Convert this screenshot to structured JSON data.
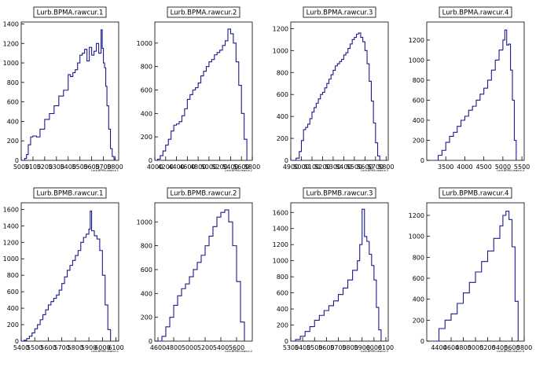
{
  "chart_data": [
    {
      "type": "histogram",
      "title": "Lurb.BPMA.rawcur.1",
      "xlabel": "Lurb.BPMA.rawcur.1",
      "x_ticks": [
        "5000",
        "5100",
        "5200",
        "5300",
        "5400",
        "5500",
        "5600",
        "5700",
        "5800"
      ],
      "y_ticks": [
        "0",
        "200",
        "400",
        "600",
        "800",
        "1000",
        "1200",
        "1400"
      ],
      "xlim": [
        5000,
        5830
      ],
      "ylim": [
        0,
        1420
      ],
      "x": [
        5010,
        5030,
        5045,
        5060,
        5080,
        5100,
        5130,
        5160,
        5200,
        5240,
        5280,
        5320,
        5360,
        5400,
        5420,
        5440,
        5460,
        5480,
        5500,
        5520,
        5540,
        5560,
        5580,
        5600,
        5620,
        5640,
        5660,
        5680,
        5690,
        5700,
        5710,
        5720,
        5730,
        5745,
        5760,
        5775,
        5790,
        5800
      ],
      "values": [
        0,
        20,
        60,
        160,
        240,
        250,
        240,
        320,
        420,
        480,
        560,
        660,
        720,
        880,
        860,
        900,
        930,
        1000,
        1080,
        1100,
        1140,
        1020,
        1160,
        1080,
        1120,
        1200,
        1100,
        1340,
        1150,
        1000,
        950,
        760,
        560,
        320,
        120,
        40,
        10,
        0
      ]
    },
    {
      "type": "histogram",
      "title": "Lurb.BPMA.rawcur.2",
      "xlabel": "Lurb.BPMA.rawcur.2",
      "x_ticks": [
        "4000",
        "4200",
        "4400",
        "4600",
        "4800",
        "5000",
        "5200",
        "5400",
        "5600",
        "5800"
      ],
      "y_ticks": [
        "0",
        "200",
        "400",
        "600",
        "800",
        "1000"
      ],
      "xlim": [
        4000,
        5800
      ],
      "ylim": [
        0,
        1180
      ],
      "x": [
        4000,
        4050,
        4100,
        4150,
        4200,
        4250,
        4300,
        4350,
        4400,
        4450,
        4500,
        4550,
        4600,
        4650,
        4700,
        4750,
        4800,
        4850,
        4900,
        4950,
        5000,
        5050,
        5100,
        5150,
        5200,
        5250,
        5300,
        5350,
        5400,
        5450,
        5500,
        5550,
        5600,
        5650,
        5700
      ],
      "values": [
        0,
        10,
        40,
        80,
        130,
        180,
        250,
        300,
        310,
        330,
        380,
        440,
        520,
        560,
        600,
        620,
        660,
        720,
        760,
        800,
        840,
        860,
        900,
        920,
        940,
        980,
        1020,
        1120,
        1080,
        1000,
        840,
        640,
        400,
        180,
        0
      ]
    },
    {
      "type": "histogram",
      "title": "Lurb.BPMA.rawcur.3",
      "xlabel": "Lurb.BPMA.rawcur.3",
      "x_ticks": [
        "4900",
        "5000",
        "5100",
        "5200",
        "5300",
        "5400",
        "5500",
        "5600",
        "5700",
        "5800"
      ],
      "y_ticks": [
        "0",
        "200",
        "400",
        "600",
        "800",
        "1000",
        "1200"
      ],
      "xlim": [
        4900,
        5820
      ],
      "ylim": [
        0,
        1260
      ],
      "x": [
        4900,
        4950,
        4980,
        5000,
        5020,
        5040,
        5060,
        5080,
        5100,
        5120,
        5140,
        5160,
        5180,
        5200,
        5220,
        5240,
        5260,
        5280,
        5300,
        5320,
        5340,
        5360,
        5380,
        5400,
        5420,
        5440,
        5460,
        5480,
        5500,
        5520,
        5540,
        5560,
        5580,
        5600,
        5620,
        5640,
        5660,
        5680,
        5700,
        5720,
        5740
      ],
      "values": [
        0,
        20,
        80,
        180,
        280,
        300,
        330,
        380,
        440,
        480,
        520,
        560,
        600,
        620,
        660,
        700,
        740,
        780,
        820,
        860,
        880,
        900,
        920,
        960,
        980,
        1020,
        1060,
        1100,
        1120,
        1150,
        1160,
        1120,
        1080,
        1000,
        880,
        720,
        540,
        340,
        160,
        40,
        0
      ]
    },
    {
      "type": "histogram",
      "title": "Lurb.BPMA.rawcur.4",
      "xlabel": "Lurb.BPMA.rawcur.4",
      "x_ticks": [
        "3500",
        "4000",
        "4500",
        "5000",
        "5500"
      ],
      "y_ticks": [
        "0",
        "200",
        "400",
        "600",
        "800",
        "1000",
        "1200"
      ],
      "xlim": [
        3000,
        5560
      ],
      "ylim": [
        0,
        1380
      ],
      "x": [
        3200,
        3300,
        3400,
        3500,
        3600,
        3700,
        3800,
        3900,
        4000,
        4100,
        4200,
        4300,
        4400,
        4500,
        4600,
        4700,
        4800,
        4900,
        5000,
        5050,
        5100,
        5150,
        5200,
        5250,
        5300,
        5350
      ],
      "values": [
        0,
        50,
        100,
        180,
        240,
        280,
        340,
        400,
        440,
        500,
        540,
        600,
        660,
        720,
        800,
        900,
        1000,
        1100,
        1200,
        1300,
        1150,
        1160,
        900,
        600,
        200,
        0
      ]
    },
    {
      "type": "histogram",
      "title": "Lurb.BPMB.rawcur.1",
      "xlabel": "Lurb.BPMB.rawcur.1",
      "x_ticks": [
        "5400",
        "5500",
        "5600",
        "5700",
        "5800",
        "5900",
        "6000",
        "6100"
      ],
      "y_ticks": [
        "0",
        "200",
        "400",
        "600",
        "800",
        "1000",
        "1200",
        "1400",
        "1600"
      ],
      "xlim": [
        5400,
        6120
      ],
      "ylim": [
        0,
        1680
      ],
      "x": [
        5400,
        5420,
        5440,
        5460,
        5480,
        5500,
        5520,
        5540,
        5560,
        5580,
        5600,
        5620,
        5640,
        5660,
        5680,
        5700,
        5720,
        5740,
        5760,
        5780,
        5800,
        5820,
        5840,
        5860,
        5880,
        5900,
        5910,
        5920,
        5940,
        5960,
        5980,
        6000,
        6020,
        6040,
        6060
      ],
      "values": [
        0,
        10,
        30,
        60,
        100,
        150,
        200,
        260,
        320,
        380,
        440,
        480,
        520,
        560,
        620,
        700,
        780,
        860,
        920,
        980,
        1040,
        1100,
        1200,
        1260,
        1300,
        1360,
        1580,
        1340,
        1280,
        1240,
        1100,
        800,
        440,
        140,
        0
      ]
    },
    {
      "type": "histogram",
      "title": "Lurb.BPMB.rawcur.2",
      "xlabel": "Lurb.BPMB.rawcur.2",
      "x_ticks": [
        "4600",
        "4800",
        "5000",
        "5200",
        "5400",
        "5600"
      ],
      "y_ticks": [
        "0",
        "200",
        "400",
        "600",
        "800",
        "1000"
      ],
      "xlim": [
        4560,
        5800
      ],
      "ylim": [
        0,
        1160
      ],
      "x": [
        4600,
        4650,
        4700,
        4750,
        4800,
        4850,
        4900,
        4950,
        5000,
        5050,
        5100,
        5150,
        5200,
        5250,
        5300,
        5350,
        5400,
        5450,
        5500,
        5550,
        5600,
        5650,
        5700
      ],
      "values": [
        0,
        40,
        120,
        200,
        300,
        380,
        440,
        480,
        540,
        600,
        660,
        720,
        800,
        880,
        960,
        1040,
        1080,
        1100,
        1000,
        800,
        500,
        160,
        0
      ]
    },
    {
      "type": "histogram",
      "title": "Lurb.BPMB.rawcur.3",
      "xlabel": "Lurb.BPMB.rawcur.3",
      "x_ticks": [
        "5300",
        "5400",
        "5500",
        "5600",
        "5700",
        "5800",
        "5900",
        "6000",
        "6100"
      ],
      "y_ticks": [
        "0",
        "200",
        "400",
        "600",
        "800",
        "1000",
        "1200",
        "1400",
        "1600"
      ],
      "xlim": [
        5300,
        6120
      ],
      "ylim": [
        0,
        1720
      ],
      "x": [
        5300,
        5340,
        5380,
        5420,
        5460,
        5500,
        5540,
        5580,
        5620,
        5660,
        5700,
        5740,
        5780,
        5820,
        5860,
        5880,
        5900,
        5920,
        5940,
        5960,
        5980,
        6000,
        6020,
        6040,
        6060
      ],
      "values": [
        0,
        20,
        60,
        120,
        180,
        260,
        320,
        380,
        440,
        500,
        580,
        660,
        760,
        880,
        1000,
        1200,
        1640,
        1300,
        1240,
        1080,
        940,
        760,
        420,
        140,
        0
      ]
    },
    {
      "type": "histogram",
      "title": "Lurb.BPMB.rawcur.4",
      "xlabel": "Lurb.BPMB.rawcur.4",
      "x_ticks": [
        "4400",
        "4600",
        "4800",
        "5000",
        "5200",
        "5400",
        "5600",
        "5800"
      ],
      "y_ticks": [
        "0",
        "200",
        "400",
        "600",
        "800",
        "1000",
        "1200"
      ],
      "xlim": [
        4200,
        5800
      ],
      "ylim": [
        0,
        1320
      ],
      "x": [
        4300,
        4400,
        4500,
        4600,
        4700,
        4800,
        4900,
        5000,
        5100,
        5200,
        5300,
        5400,
        5450,
        5500,
        5550,
        5600,
        5650,
        5700
      ],
      "values": [
        0,
        120,
        200,
        260,
        360,
        460,
        560,
        660,
        760,
        860,
        980,
        1100,
        1200,
        1240,
        1160,
        900,
        380,
        0
      ]
    }
  ]
}
